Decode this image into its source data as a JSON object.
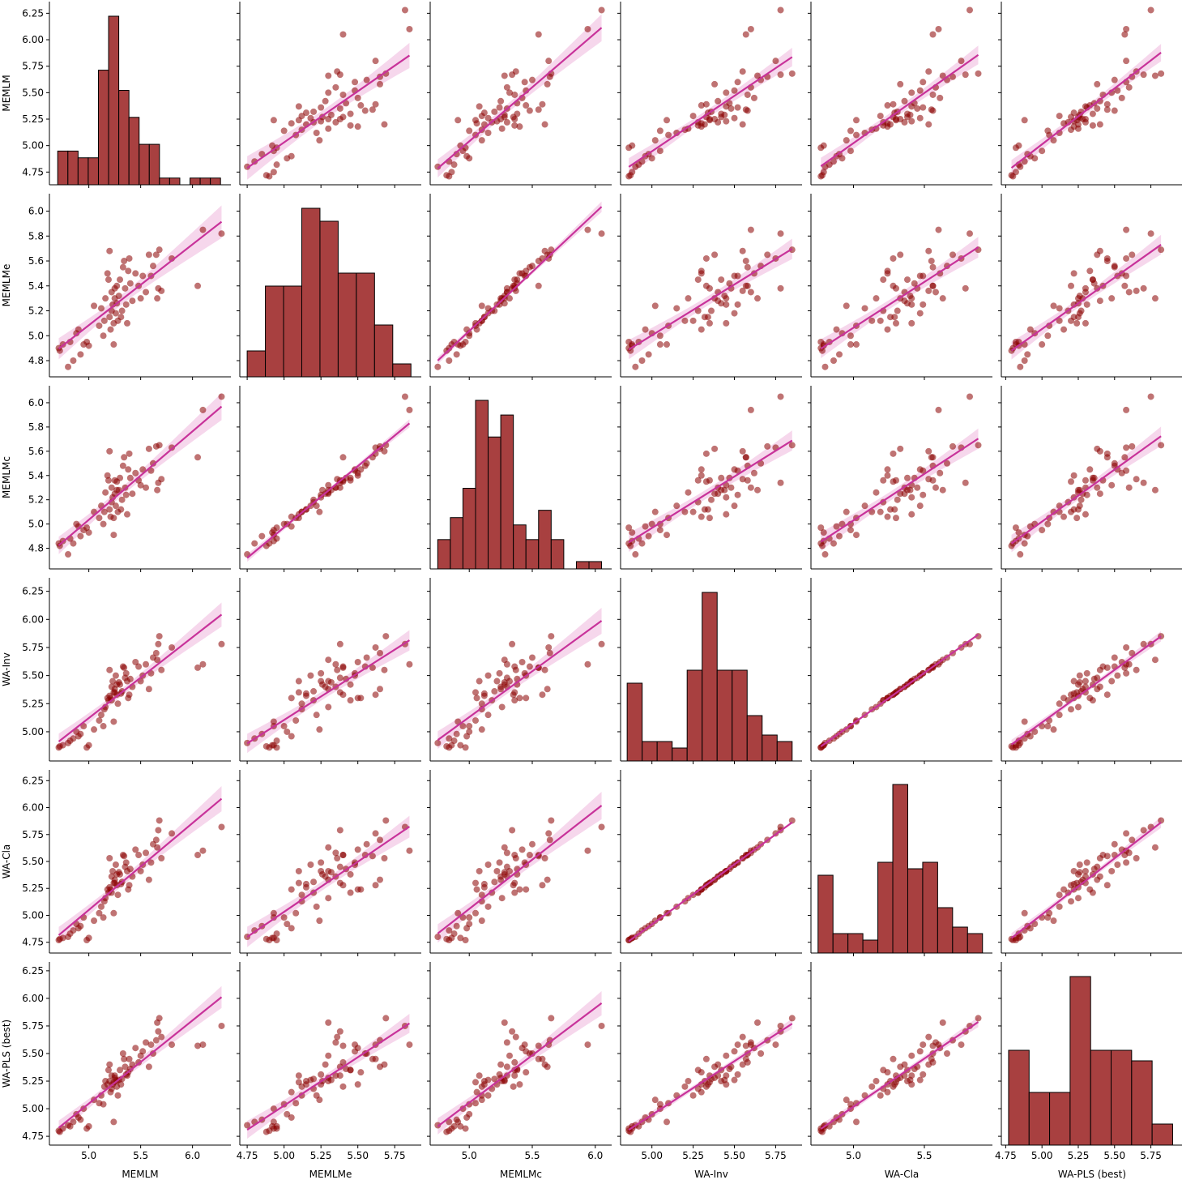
{
  "chart_data": {
    "type": "pairplot",
    "title": "",
    "colors": {
      "point": "#8b0000",
      "bar": "#a84040",
      "line": "#c8329a",
      "band": "#e89bd0"
    },
    "variables": [
      {
        "name": "MEMLM",
        "xlim": [
          4.62,
          6.37
        ],
        "ylim": [
          4.63,
          6.36
        ],
        "xticks": [
          5.0,
          5.5,
          6.0
        ],
        "xtick_labels": [
          "5.0",
          "5.5",
          "6.0"
        ],
        "yticks": [
          4.75,
          5.0,
          5.25,
          5.5,
          5.75,
          6.0,
          6.25
        ],
        "ytick_labels": [
          "4.75",
          "5.00",
          "5.25",
          "5.50",
          "5.75",
          "6.00",
          "6.25"
        ],
        "hist": {
          "range": [
            4.7,
            6.27
          ],
          "counts": [
            5,
            5,
            4,
            4,
            17,
            25,
            14,
            10,
            6,
            6,
            1,
            1,
            0,
            1,
            1,
            1
          ]
        }
      },
      {
        "name": "MEMLMe",
        "xlim": [
          4.7,
          5.93
        ],
        "ylim": [
          4.67,
          6.14
        ],
        "xticks": [
          4.75,
          5.0,
          5.25,
          5.5,
          5.75
        ],
        "xtick_labels": [
          "4.75",
          "5.00",
          "5.25",
          "5.50",
          "5.75"
        ],
        "yticks": [
          4.8,
          5.0,
          5.2,
          5.4,
          5.6,
          5.8,
          6.0
        ],
        "ytick_labels": [
          "4.8",
          "5.0",
          "5.2",
          "5.4",
          "5.6",
          "5.8",
          "6.0"
        ],
        "hist": {
          "range": [
            4.75,
            5.86
          ],
          "counts": [
            2,
            7,
            7,
            13,
            12,
            8,
            8,
            4,
            1
          ]
        }
      },
      {
        "name": "MEMLMc",
        "xlim": [
          4.69,
          6.13
        ],
        "ylim": [
          4.63,
          6.14
        ],
        "xticks": [
          5.0,
          5.5,
          6.0
        ],
        "xtick_labels": [
          "5.0",
          "5.5",
          "6.0"
        ],
        "yticks": [
          4.8,
          5.0,
          5.2,
          5.4,
          5.6,
          5.8,
          6.0
        ],
        "ytick_labels": [
          "4.8",
          "5.0",
          "5.2",
          "5.4",
          "5.6",
          "5.8",
          "6.0"
        ],
        "hist": {
          "range": [
            4.75,
            6.05
          ],
          "counts": [
            4,
            7,
            11,
            23,
            18,
            21,
            6,
            4,
            8,
            4,
            0,
            1,
            1
          ]
        }
      },
      {
        "name": "WA-Inv",
        "xlim": [
          4.81,
          5.91
        ],
        "ylim": [
          4.74,
          6.37
        ],
        "xticks": [
          5.0,
          5.25,
          5.5,
          5.75
        ],
        "xtick_labels": [
          "5.00",
          "5.25",
          "5.50",
          "5.75"
        ],
        "yticks": [
          5.0,
          5.25,
          5.5,
          5.75,
          6.0,
          6.25
        ],
        "ytick_labels": [
          "5.00",
          "5.25",
          "5.50",
          "5.75",
          "6.00",
          "6.25"
        ],
        "hist": {
          "range": [
            4.85,
            5.85
          ],
          "counts": [
            12,
            3,
            3,
            2,
            14,
            26,
            14,
            14,
            7,
            4,
            3
          ]
        }
      },
      {
        "name": "WA-Cla",
        "xlim": [
          4.7,
          5.98
        ],
        "ylim": [
          4.65,
          6.35
        ],
        "xticks": [
          5.0,
          5.5
        ],
        "xtick_labels": [
          "5.0",
          "5.5"
        ],
        "yticks": [
          4.75,
          5.0,
          5.25,
          5.5,
          5.75,
          6.0,
          6.25
        ],
        "ytick_labels": [
          "4.75",
          "5.00",
          "5.25",
          "5.50",
          "5.75",
          "6.00",
          "6.25"
        ],
        "hist": {
          "range": [
            4.75,
            5.91
          ],
          "counts": [
            12,
            3,
            3,
            2,
            14,
            26,
            13,
            14,
            7,
            4,
            3
          ]
        }
      },
      {
        "name": "WA-PLS (best)",
        "xlim": [
          4.72,
          5.97
        ],
        "ylim": [
          4.67,
          6.33
        ],
        "xticks": [
          4.75,
          5.0,
          5.25,
          5.5,
          5.75
        ],
        "xtick_labels": [
          "4.75",
          "5.00",
          "5.25",
          "5.50",
          "5.75"
        ],
        "yticks": [
          4.75,
          5.0,
          5.25,
          5.5,
          5.75,
          6.0,
          6.25
        ],
        "ytick_labels": [
          "4.75",
          "5.00",
          "5.25",
          "5.50",
          "5.75",
          "6.00",
          "6.25"
        ],
        "hist": {
          "range": [
            4.77,
            5.9
          ],
          "counts": [
            9,
            5,
            5,
            16,
            9,
            9,
            8,
            2
          ]
        }
      }
    ],
    "observations": [
      [
        4.71,
        4.9,
        4.84,
        4.86,
        4.77,
        4.8
      ],
      [
        4.72,
        4.88,
        4.82,
        4.87,
        4.78,
        4.79
      ],
      [
        4.75,
        4.93,
        4.86,
        4.88,
        4.79,
        4.82
      ],
      [
        4.8,
        4.75,
        4.75,
        4.9,
        4.8,
        4.85
      ],
      [
        4.82,
        4.95,
        4.88,
        4.92,
        4.83,
        4.84
      ],
      [
        4.85,
        4.8,
        4.84,
        4.94,
        4.86,
        4.88
      ],
      [
        4.9,
        5.05,
        4.98,
        4.96,
        4.88,
        4.92
      ],
      [
        4.92,
        4.85,
        4.9,
        4.98,
        4.9,
        4.9
      ],
      [
        4.88,
        5.02,
        5.0,
        5.0,
        4.92,
        4.95
      ],
      [
        4.95,
        4.93,
        4.95,
        5.05,
        4.98,
        5.0
      ],
      [
        5.05,
        5.24,
        5.1,
        5.02,
        4.95,
        5.08
      ],
      [
        5.1,
        5.08,
        5.05,
        5.1,
        5.02,
        5.05
      ],
      [
        5.15,
        5.12,
        5.1,
        5.2,
        5.13,
        5.2
      ],
      [
        5.18,
        5.5,
        5.4,
        5.3,
        5.24,
        5.22
      ],
      [
        5.2,
        5.15,
        5.12,
        5.32,
        5.26,
        5.25
      ],
      [
        5.22,
        5.2,
        5.18,
        5.28,
        5.21,
        5.18
      ],
      [
        5.24,
        5.1,
        5.05,
        5.35,
        5.3,
        5.24
      ],
      [
        5.25,
        5.3,
        5.25,
        5.38,
        5.33,
        5.28
      ],
      [
        5.21,
        5.05,
        5.06,
        5.3,
        5.24,
        5.15
      ],
      [
        5.22,
        5.35,
        5.3,
        5.4,
        5.36,
        5.3
      ],
      [
        5.23,
        5.25,
        5.22,
        5.45,
        5.41,
        5.22
      ],
      [
        5.26,
        5.18,
        5.15,
        5.5,
        5.47,
        5.26
      ],
      [
        5.27,
        5.4,
        5.35,
        5.33,
        5.28,
        5.2
      ],
      [
        5.28,
        5.12,
        5.1,
        5.25,
        5.19,
        5.12
      ],
      [
        5.2,
        5.68,
        5.6,
        5.55,
        5.53,
        5.4
      ],
      [
        5.24,
        4.93,
        4.91,
        5.09,
        5.02,
        4.88
      ],
      [
        5.3,
        5.45,
        5.38,
        5.42,
        5.38,
        5.35
      ],
      [
        5.32,
        5.2,
        5.2,
        5.36,
        5.31,
        5.27
      ],
      [
        5.33,
        5.55,
        5.48,
        5.58,
        5.56,
        5.5
      ],
      [
        5.35,
        5.38,
        5.3,
        5.48,
        5.45,
        5.38
      ],
      [
        5.36,
        5.25,
        5.24,
        5.52,
        5.49,
        5.31
      ],
      [
        5.38,
        5.52,
        5.45,
        5.3,
        5.24,
        5.33
      ],
      [
        5.29,
        5.32,
        5.28,
        5.44,
        5.4,
        5.26
      ],
      [
        5.31,
        5.15,
        5.12,
        5.34,
        5.29,
        5.22
      ],
      [
        5.34,
        5.6,
        5.55,
        5.57,
        5.55,
        5.45
      ],
      [
        5.4,
        5.42,
        5.38,
        5.47,
        5.43,
        5.36
      ],
      [
        5.42,
        5.28,
        5.25,
        5.4,
        5.36,
        5.4
      ],
      [
        5.45,
        5.5,
        5.42,
        5.62,
        5.61,
        5.55
      ],
      [
        5.37,
        5.1,
        5.08,
        5.45,
        5.41,
        5.3
      ],
      [
        5.39,
        5.62,
        5.58,
        5.33,
        5.28,
        5.45
      ],
      [
        5.48,
        5.4,
        5.36,
        5.58,
        5.56,
        5.42
      ],
      [
        5.5,
        5.3,
        5.32,
        5.45,
        5.41,
        5.48
      ],
      [
        5.52,
        5.48,
        5.45,
        5.5,
        5.47,
        5.52
      ],
      [
        5.55,
        5.35,
        5.3,
        5.6,
        5.58,
        5.6
      ],
      [
        5.58,
        5.65,
        5.62,
        5.38,
        5.33,
        5.38
      ],
      [
        5.6,
        5.48,
        5.44,
        5.52,
        5.49,
        5.58
      ],
      [
        5.62,
        5.56,
        5.5,
        5.66,
        5.66,
        5.5
      ],
      [
        5.65,
        5.65,
        5.64,
        5.7,
        5.7,
        5.62
      ],
      [
        5.67,
        5.38,
        5.34,
        5.78,
        5.79,
        5.7
      ],
      [
        5.68,
        5.69,
        5.65,
        5.85,
        5.88,
        5.82
      ],
      [
        5.7,
        5.36,
        5.37,
        5.55,
        5.53,
        5.65
      ],
      [
        5.8,
        5.62,
        5.63,
        5.75,
        5.76,
        5.58
      ],
      [
        5.66,
        5.3,
        5.28,
        5.64,
        5.63,
        5.78
      ],
      [
        6.05,
        5.4,
        5.55,
        5.57,
        5.56,
        5.57
      ],
      [
        6.1,
        5.85,
        5.94,
        5.6,
        5.6,
        5.58
      ],
      [
        6.28,
        5.82,
        6.05,
        5.78,
        5.82,
        5.75
      ],
      [
        5.12,
        5.22,
        5.15,
        5.15,
        5.08,
        5.12
      ],
      [
        5.16,
        5.3,
        5.26,
        5.22,
        5.16,
        5.25
      ],
      [
        5.19,
        5.45,
        5.36,
        5.28,
        5.21,
        5.35
      ],
      [
        5.14,
        5.0,
        5.0,
        5.05,
        4.98,
        5.04
      ],
      [
        5.25,
        5.38,
        5.36,
        5.35,
        5.3,
        5.3
      ],
      [
        5.27,
        5.26,
        5.28,
        5.42,
        5.38,
        5.25
      ],
      [
        4.98,
        4.95,
        4.97,
        4.86,
        4.77,
        4.82
      ],
      [
        5.0,
        4.92,
        4.93,
        4.88,
        4.79,
        4.84
      ]
    ]
  }
}
